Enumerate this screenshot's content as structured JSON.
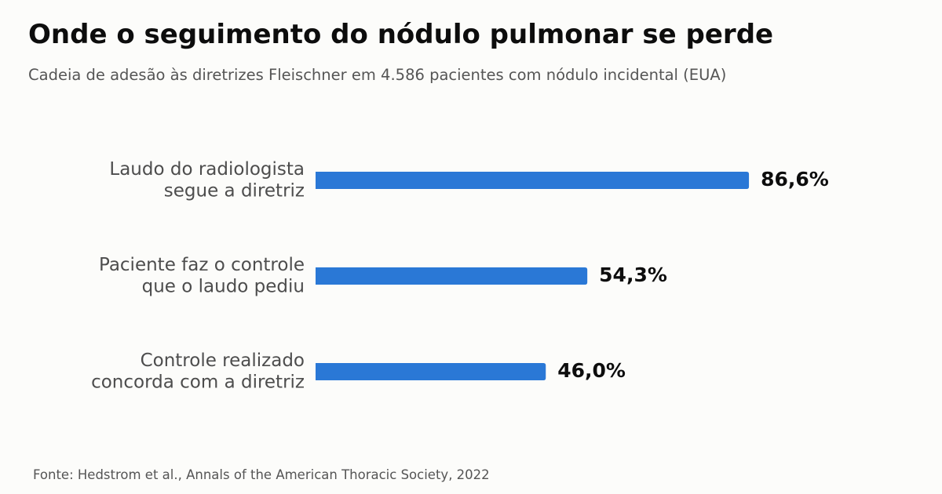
{
  "title": "Onde o seguimento do nódulo pulmonar se perde",
  "subtitle": "Cadeia de adesão às diretrizes Fleischner em 4.586 pacientes com nódulo incidental (EUA)",
  "source": "Fonte: Hedstrom et al., Annals of the American Thoracic Society, 2022",
  "chart_data": {
    "type": "bar",
    "orientation": "horizontal",
    "categories": [
      [
        "Laudo do radiologista",
        "segue a diretriz"
      ],
      [
        "Paciente faz o controle",
        "que o laudo pediu"
      ],
      [
        "Controle realizado",
        "concorda com a diretriz"
      ]
    ],
    "values": [
      86.6,
      54.3,
      46.0
    ],
    "value_labels": [
      "86,6%",
      "54,3%",
      "46,0%"
    ],
    "xlim": [
      0,
      100
    ],
    "grid": false,
    "legend": "none",
    "bar_color": "#2a78d6"
  }
}
